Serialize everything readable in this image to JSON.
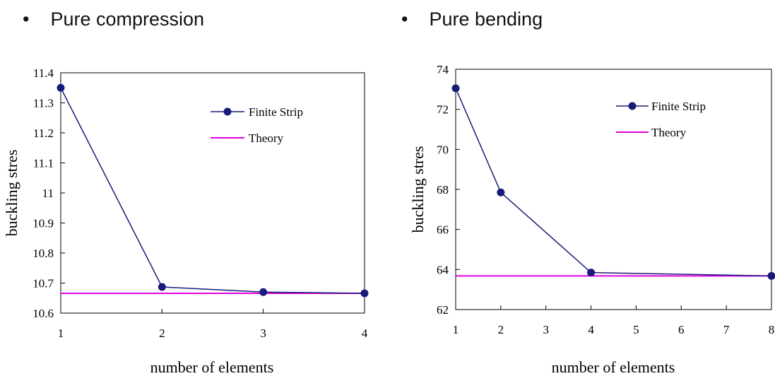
{
  "headings": {
    "left": "Pure compression",
    "right": "Pure bending",
    "bullet": "•"
  },
  "colors": {
    "finite_strip": "#1a1a7a",
    "theory": "#e000e0",
    "axis": "#000000"
  },
  "chart_data": [
    {
      "type": "line",
      "title": "Pure compression",
      "xlabel": "number of elements",
      "ylabel": "buckling stres",
      "categories": [
        "1",
        "2",
        "3",
        "4"
      ],
      "ylim": [
        10.6,
        11.4
      ],
      "yticks": [
        "11.4",
        "11.3",
        "11.2",
        "11.1",
        "11",
        "10.9",
        "10.8",
        "10.7",
        "10.6"
      ],
      "legend_position": "top-right",
      "series": [
        {
          "name": "Finite Strip",
          "values": [
            11.35,
            10.687,
            10.67,
            10.666
          ],
          "marker": "circle"
        },
        {
          "name": "Theory",
          "values": [
            10.666,
            10.666,
            10.666,
            10.666
          ],
          "marker": "none"
        }
      ]
    },
    {
      "type": "line",
      "title": "Pure bending",
      "xlabel": "number of elements",
      "ylabel": "buckling stres",
      "categories": [
        "1",
        "2",
        "3",
        "4",
        "5",
        "6",
        "7",
        "8"
      ],
      "ylim": [
        62,
        74
      ],
      "yticks": [
        "74",
        "72",
        "70",
        "68",
        "66",
        "64",
        "62"
      ],
      "legend_position": "top-right",
      "series": [
        {
          "name": "Finite Strip",
          "points": [
            [
              1,
              73.05
            ],
            [
              2,
              67.85
            ],
            [
              4,
              63.85
            ],
            [
              8,
              63.68
            ]
          ],
          "marker": "circle"
        },
        {
          "name": "Theory",
          "points": [
            [
              1,
              63.68
            ],
            [
              8,
              63.68
            ]
          ],
          "marker": "none"
        }
      ]
    }
  ]
}
